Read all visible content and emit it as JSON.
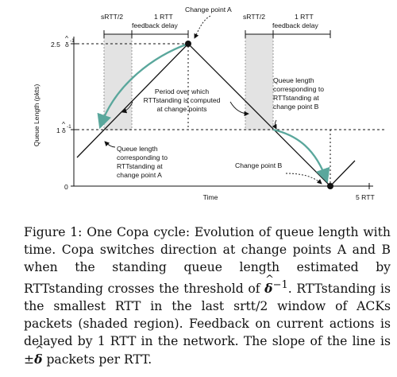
{
  "diagram": {
    "y_axis_label": "Queue Length (pkts)",
    "x_axis_label": "Time",
    "y_tick_top": "2.5",
    "y_tick_mid": "1",
    "y_tick_zero": "0",
    "delta_symbol": "δ",
    "inverse_exp": "-1",
    "x_tick_right": "5 RTT",
    "srtt_left": "sRTT/2",
    "rtt_left": "1 RTT",
    "feedback_left": "feedback delay",
    "srtt_right": "sRTT/2",
    "rtt_right": "1 RTT",
    "feedback_right": "feedback delay",
    "change_point_a": "Change point A",
    "change_point_b": "Change point B",
    "period_text": [
      "Period over which",
      "RTTstanding is computed",
      "at change points"
    ],
    "queue_a_text": [
      "Queue length",
      "corresponding to",
      "RTTstanding at",
      "change point A"
    ],
    "queue_b_text": [
      "Queue length",
      "corresponding to",
      "RTTstanding at",
      "change point B"
    ]
  },
  "caption": {
    "label": "Figure 1:",
    "part1": "One Copa cycle: Evolution of queue length with time. Copa switches direction at change points A and B when the standing queue length estimated by RTTstanding crosses the threshold of",
    "threshold_symbol": "δ",
    "threshold_exp": "−1",
    "part2": ". RTTstanding is the smallest RTT in the last srtt/2 window of ACKs packets (shaded region). Feedback on current actions is delayed by 1 RTT in the network. The slope of the line is ±",
    "slope_symbol": "δ",
    "part3": " packets per RTT."
  }
}
